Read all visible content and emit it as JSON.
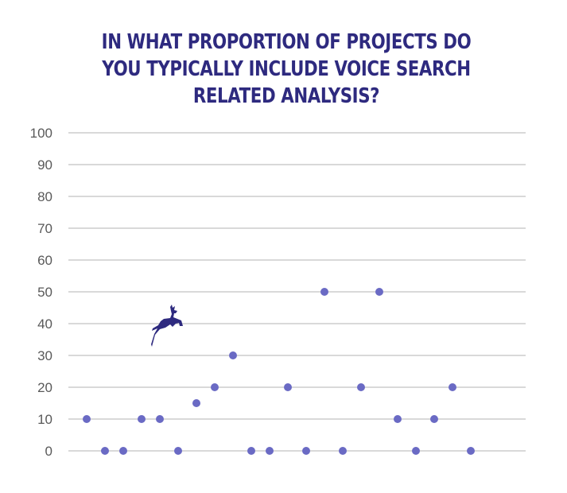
{
  "chart_data": {
    "type": "scatter",
    "title_lines": [
      "IN WHAT PROPORTION OF PROJECTS DO",
      "YOU TYPICALLY INCLUDE VOICE SEARCH",
      "RELATED ANALYSIS?"
    ],
    "xlabel": "",
    "ylabel": "",
    "ylim": [
      0,
      100
    ],
    "y_ticks": [
      "100",
      "90",
      "80",
      "70",
      "60",
      "50",
      "40",
      "30",
      "20",
      "10",
      "0"
    ],
    "grid": true,
    "x": [
      1,
      2,
      3,
      4,
      5,
      6,
      7,
      8,
      9,
      10,
      11,
      12,
      13,
      14,
      15,
      16,
      17,
      18,
      19,
      20,
      21,
      22
    ],
    "values": [
      10,
      0,
      0,
      10,
      10,
      0,
      15,
      20,
      30,
      0,
      0,
      20,
      0,
      50,
      0,
      20,
      50,
      10,
      0,
      10,
      20,
      0
    ],
    "point_color": "#6a6ac4",
    "title_color": "#2e2a7f",
    "logo": "deer-logo-icon"
  }
}
